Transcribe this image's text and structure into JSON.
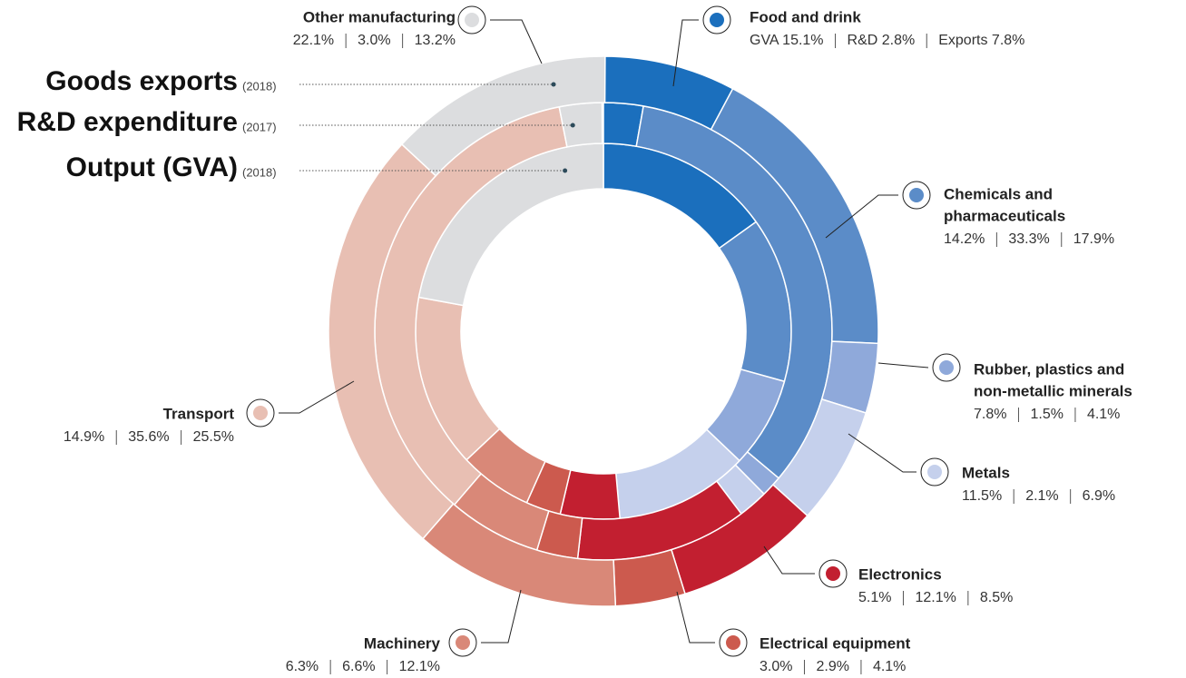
{
  "chart_data": {
    "type": "donut",
    "categories": [
      [
        "Food and drink"
      ],
      [
        "Chemicals and",
        "pharmaceuticals"
      ],
      [
        "Rubber, plastics and",
        "non-metallic minerals"
      ],
      [
        "Metals"
      ],
      [
        "Electronics"
      ],
      [
        "Electrical equipment"
      ],
      [
        "Machinery"
      ],
      [
        "Transport"
      ],
      [
        "Other manufacturing"
      ]
    ],
    "colors": [
      "#1b6fbd",
      "#5b8cc8",
      "#8fa9da",
      "#c5d0ec",
      "#c21f30",
      "#cc5a4e",
      "#d98878",
      "#e8bfb3",
      "#dcdddf"
    ],
    "series": [
      {
        "name": "Output (GVA)",
        "note": "(2018)",
        "values": [
          15.1,
          14.2,
          7.8,
          11.5,
          5.1,
          3.0,
          6.3,
          14.9,
          22.1
        ],
        "value_labels": [
          "GVA 15.1%",
          "14.2%",
          "7.8%",
          "11.5%",
          "5.1%",
          "3.0%",
          "6.3%",
          "14.9%",
          "22.1%"
        ]
      },
      {
        "name": "R&D expenditure",
        "note": "(2017)",
        "values": [
          2.8,
          33.3,
          1.5,
          2.1,
          12.1,
          2.9,
          6.6,
          35.6,
          3.0
        ],
        "value_labels": [
          "R&D 2.8%",
          "33.3%",
          "1.5%",
          "2.1%",
          "12.1%",
          "2.9%",
          "6.6%",
          "35.6%",
          "3.0%"
        ]
      },
      {
        "name": "Goods exports",
        "note": "(2018)",
        "values": [
          7.8,
          17.9,
          4.1,
          6.9,
          8.5,
          4.1,
          12.1,
          25.5,
          13.2
        ],
        "value_labels": [
          "Exports 7.8%",
          "17.9%",
          "4.1%",
          "6.9%",
          "8.5%",
          "4.1%",
          "12.1%",
          "25.5%",
          "13.2%"
        ]
      }
    ]
  }
}
